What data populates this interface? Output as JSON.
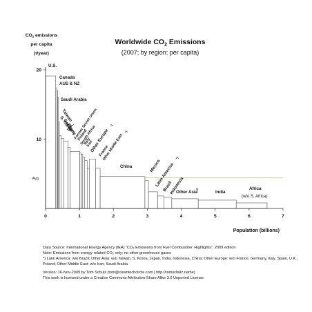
{
  "chart_data": {
    "type": "bar",
    "subtype": "variable-width (population-weighted) per-capita bars",
    "title_parts": [
      "Worldwide CO",
      "2",
      " Emissions"
    ],
    "subtitle": "(2007; by region; per capita)",
    "ylabel_lines": [
      [
        "CO",
        "2",
        " emissions"
      ],
      [
        "per capita"
      ],
      [
        "(t/year)"
      ]
    ],
    "xlabel": "Population (billions)",
    "xlim": [
      0,
      7
    ],
    "ylim": [
      0,
      20
    ],
    "xticks": [
      "0",
      "1",
      "2",
      "3",
      "4",
      "5",
      "6",
      "7"
    ],
    "yticks": [
      "10",
      "20"
    ],
    "avg_label": "Avg",
    "avg_value": 4.4,
    "avg_color": "#a8c878",
    "bar_color": "#ffffff",
    "bar_edge_color": "#444444",
    "regions": [
      {
        "label": "U.S.",
        "width": 0.3,
        "value": 19.1
      },
      {
        "label": "Canada",
        "width": 0.033,
        "value": 17.4
      },
      {
        "label": "AUS & NZ",
        "width": 0.025,
        "value": 17.0
      },
      {
        "label": "Saudi Arabia",
        "width": 0.025,
        "value": 16.0
      },
      {
        "label": "Taiwan",
        "width": 0.023,
        "value": 12.5
      },
      {
        "label": "S. Korea",
        "width": 0.048,
        "value": 10.5
      },
      {
        "label": "Germany",
        "width": 0.082,
        "value": 10.1
      },
      {
        "label": "Japan",
        "width": 0.128,
        "value": 9.7
      },
      {
        "label": "U.K.",
        "width": 0.061,
        "value": 8.8
      },
      {
        "label": "Former Soviet Union",
        "width": 0.285,
        "value": 8.2
      },
      {
        "label": "Poland",
        "width": 0.038,
        "value": 8.0
      },
      {
        "label": "South Africa",
        "width": 0.048,
        "value": 7.8
      },
      {
        "label": "Italy",
        "width": 0.059,
        "value": 7.4
      },
      {
        "label": "Iran",
        "width": 0.071,
        "value": 6.9
      },
      {
        "label": "France",
        "width": 0.063,
        "value": 5.8
      },
      {
        "label": "Other Europe",
        "width": 0.19,
        "value": 7.1
      },
      {
        "label": "Other Middle East",
        "width": 0.13,
        "value": 5.8
      },
      {
        "label": "China",
        "width": 1.32,
        "value": 4.6
      },
      {
        "label": "Mexico",
        "width": 0.106,
        "value": 4.0
      },
      {
        "label": "Latin America",
        "width": 0.27,
        "value": 2.4
      },
      {
        "label": "Brazil",
        "width": 0.19,
        "value": 1.8
      },
      {
        "label": "Indonesia",
        "width": 0.226,
        "value": 1.6
      },
      {
        "label": "Other Asia",
        "width": 0.78,
        "value": 1.4
      },
      {
        "label": "India",
        "width": 1.12,
        "value": 1.2
      },
      {
        "label": "Africa (w/o S. Africa)",
        "width": 0.91,
        "value": 0.8
      }
    ],
    "label_texts": {
      "us": "U.S.",
      "canada": "Canada",
      "aus_nz": "AUS & NZ",
      "saudi": "Saudi Arabia",
      "taiwan": "Taiwan",
      "s_korea": "S. Korea",
      "germany": "Germany",
      "japan": "Japan",
      "uk": "U.K.",
      "fsu": "Former Soviet Union",
      "poland": "Poland",
      "south_africa": "South Africa",
      "italy": "Italy",
      "iran": "Iran",
      "other_europe": "Other Europe",
      "other_europe_mark": "*)",
      "france": "France",
      "other_me": "Other Middle East",
      "other_me_mark": "*)",
      "china": "China",
      "mexico": "Mexico",
      "latin_america": "Latin America",
      "latin_america_mark": "*)",
      "brazil": "Brazil",
      "indonesia": "Indonesia",
      "other_asia": "Other Asia",
      "other_asia_mark": "*)",
      "india": "India",
      "africa": "Africa",
      "africa_sub": "(w/o S. Africa)"
    }
  },
  "notes": {
    "source": "Data Source: International Energy Agency (IEA) \"CO₂ Emissions from Fuel Combustion: Highlights\", 2009 edition",
    "note": "Note: Emissions from energy-related CO₂ only; no other greenhouse gases",
    "footnote": "*) Latin America: w/o Brazil; Other Asia: w/o Taiwan, S. Korea, Japan, India, Indonesia, China; Other Europe: w/o France, Germany, Italy, Spain, U.K., Poland; Other Middle East: w/o Iran, Saudi Arabia",
    "version": "Version: 16-Nov-2009 by Tom Schulz (tom@cleantechcircle.com | http://tomschulz.name)",
    "license": "This work is licensed under a Creative Commons Attribution-Share Alike 3.0 Unported License."
  }
}
